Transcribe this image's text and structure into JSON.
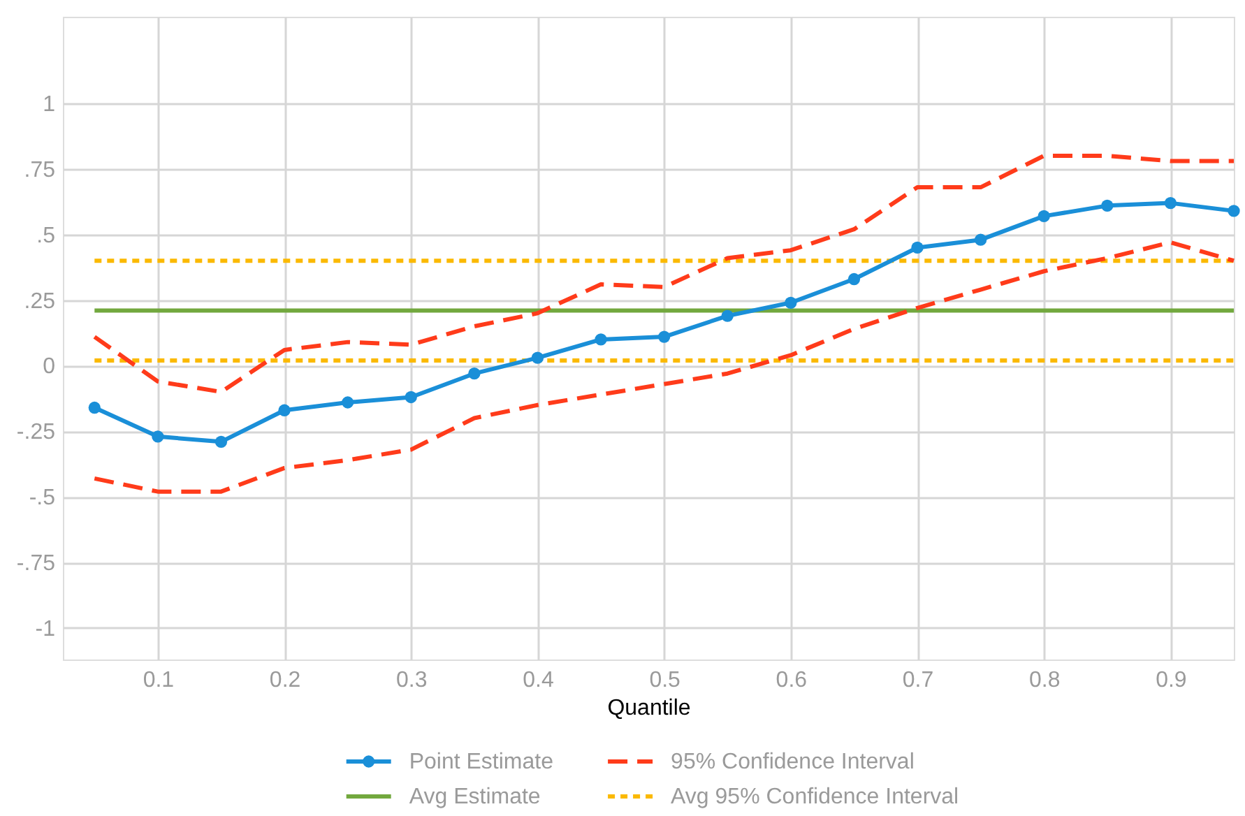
{
  "chart_data": {
    "type": "line",
    "xlabel": "Quantile",
    "x": [
      0.05,
      0.1,
      0.15,
      0.2,
      0.25,
      0.3,
      0.35,
      0.4,
      0.45,
      0.5,
      0.55,
      0.6,
      0.65,
      0.7,
      0.75,
      0.8,
      0.85,
      0.9,
      0.95
    ],
    "series": [
      {
        "name": "Point Estimate",
        "color": "#1a8fd8",
        "marker": "circle",
        "line_style": "solid",
        "values": [
          -0.16,
          -0.27,
          -0.29,
          -0.17,
          -0.14,
          -0.12,
          -0.03,
          0.03,
          0.1,
          0.11,
          0.19,
          0.24,
          0.33,
          0.45,
          0.48,
          0.57,
          0.61,
          0.62,
          0.59
        ]
      },
      {
        "name": "95% Confidence Interval",
        "color": "#ff3b1a",
        "line_style": "dashed",
        "values": [
          0.11,
          -0.06,
          -0.1,
          0.06,
          0.09,
          0.08,
          0.15,
          0.2,
          0.31,
          0.3,
          0.41,
          0.44,
          0.52,
          0.68,
          0.68,
          0.8,
          0.8,
          0.78,
          0.78
        ]
      },
      {
        "color": "#ff3b1a",
        "line_style": "dashed",
        "values": [
          -0.43,
          -0.48,
          -0.48,
          -0.39,
          -0.36,
          -0.32,
          -0.2,
          -0.15,
          -0.11,
          -0.07,
          -0.03,
          0.04,
          0.14,
          0.22,
          0.29,
          0.36,
          0.41,
          0.47,
          0.4
        ]
      }
    ],
    "ref_lines": [
      {
        "axis": "y",
        "value": 0.21,
        "label": "Avg Estimate",
        "color": "#72a83e",
        "line_style": "solid"
      },
      {
        "axis": "y",
        "value": 0.4,
        "label": "Avg 95% Confidence Interval",
        "color": "#fbb900",
        "line_style": "dotted"
      },
      {
        "axis": "y",
        "value": 0.02,
        "color": "#fbb900",
        "line_style": "dotted"
      }
    ],
    "xlim": [
      0.025,
      0.95
    ],
    "xticks": [
      0.1,
      0.2,
      0.3,
      0.4,
      0.5,
      0.6,
      0.7,
      0.8,
      0.9
    ],
    "ylim": [
      -1.12,
      1.33
    ],
    "yticks": [
      -1,
      {
        "value": -0.75,
        "label": "-.75"
      },
      {
        "value": -0.5,
        "label": "-.5"
      },
      {
        "value": -0.25,
        "label": "-.25"
      },
      0,
      {
        "value": 0.25,
        "label": ".25"
      },
      {
        "value": 0.5,
        "label": ".5"
      },
      {
        "value": 0.75,
        "label": ".75"
      },
      1
    ],
    "grid": true,
    "legend": "bottom"
  }
}
